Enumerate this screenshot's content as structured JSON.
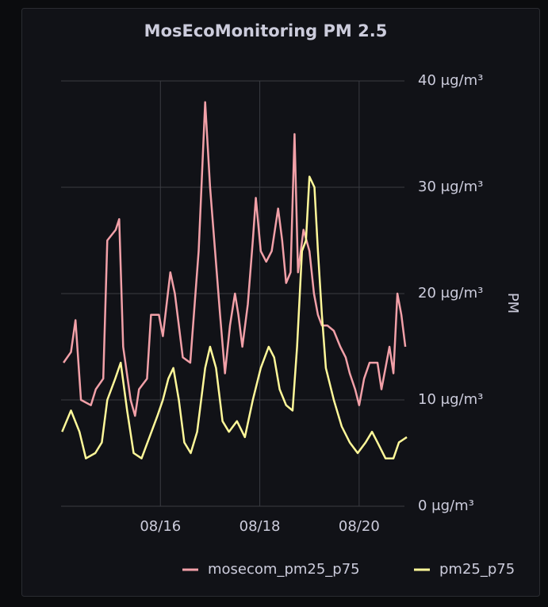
{
  "chart_data": {
    "type": "line",
    "title": "MosEcoMonitoring PM 2.5",
    "y_label": "PM",
    "xlim": [
      14,
      21
    ],
    "xticks": [
      {
        "value": 16,
        "label": "08/16"
      },
      {
        "value": 18,
        "label": "08/18"
      },
      {
        "value": 20,
        "label": "08/20"
      }
    ],
    "ylim": [
      0,
      40
    ],
    "yticks": [
      {
        "value": 0,
        "label": "0 μg/m³"
      },
      {
        "value": 10,
        "label": "10 μg/m³"
      },
      {
        "value": 20,
        "label": "20 μg/m³"
      },
      {
        "value": 30,
        "label": "30 μg/m³"
      },
      {
        "value": 40,
        "label": "40 μg/m³"
      }
    ],
    "grid": true,
    "legend": "bottom",
    "series": [
      {
        "name": "mosecom_pm25_p75",
        "color": "#f2a0a8",
        "x": [
          14.05,
          14.2,
          14.29,
          14.4,
          14.6,
          14.7,
          14.85,
          14.93,
          15.1,
          15.17,
          15.25,
          15.4,
          15.49,
          15.57,
          15.73,
          15.81,
          15.97,
          16.05,
          16.2,
          16.29,
          16.45,
          16.6,
          16.77,
          16.9,
          17.0,
          17.1,
          17.2,
          17.3,
          17.4,
          17.5,
          17.57,
          17.65,
          17.76,
          17.86,
          17.92,
          18.02,
          18.13,
          18.24,
          18.37,
          18.45,
          18.53,
          18.62,
          18.7,
          18.77,
          18.88,
          19.0,
          19.09,
          19.17,
          19.25,
          19.36,
          19.49,
          19.62,
          19.73,
          19.81,
          19.92,
          20.0,
          20.1,
          20.21,
          20.37,
          20.45,
          20.53,
          20.61,
          20.69,
          20.77,
          20.85,
          20.93
        ],
        "values": [
          13.5,
          14.5,
          17.5,
          10,
          9.5,
          11,
          12,
          25,
          26,
          27,
          15,
          10,
          8.5,
          11,
          12,
          18,
          18,
          16,
          22,
          20,
          14,
          13.5,
          24,
          38,
          30,
          24,
          18,
          12.5,
          17,
          20,
          18,
          15,
          19,
          25,
          29,
          24,
          23,
          24,
          28,
          25,
          21,
          22,
          35,
          22,
          26,
          24,
          20,
          18,
          17,
          17,
          16.5,
          15,
          14,
          12.5,
          11,
          9.5,
          12,
          13.5,
          13.5,
          11,
          13,
          15,
          12.5,
          20,
          18,
          15
        ]
      },
      {
        "name": "pm25_p75",
        "color": "#fff899",
        "x": [
          14.02,
          14.2,
          14.37,
          14.5,
          14.69,
          14.82,
          14.93,
          15.09,
          15.2,
          15.33,
          15.46,
          15.62,
          15.78,
          15.94,
          16.05,
          16.16,
          16.26,
          16.37,
          16.48,
          16.61,
          16.74,
          16.9,
          17.0,
          17.12,
          17.25,
          17.38,
          17.54,
          17.7,
          17.86,
          18.02,
          18.18,
          18.29,
          18.4,
          18.53,
          18.66,
          18.75,
          18.85,
          18.93,
          19.0,
          19.1,
          19.17,
          19.25,
          19.33,
          19.49,
          19.65,
          19.81,
          19.97,
          20.13,
          20.26,
          20.37,
          20.53,
          20.69,
          20.8,
          20.96
        ],
        "values": [
          7,
          9,
          7,
          4.5,
          5,
          6,
          10,
          12,
          13.5,
          9,
          5,
          4.5,
          6.5,
          8.5,
          10,
          12,
          13,
          10,
          6,
          5,
          7,
          13,
          15,
          13,
          8,
          7,
          8,
          6.5,
          10,
          13,
          15,
          14,
          11,
          9.5,
          9,
          15,
          24,
          25,
          31,
          30,
          24,
          18,
          13,
          10,
          7.5,
          6,
          5,
          6,
          7,
          6,
          4.5,
          4.5,
          6,
          6.5
        ]
      }
    ]
  }
}
